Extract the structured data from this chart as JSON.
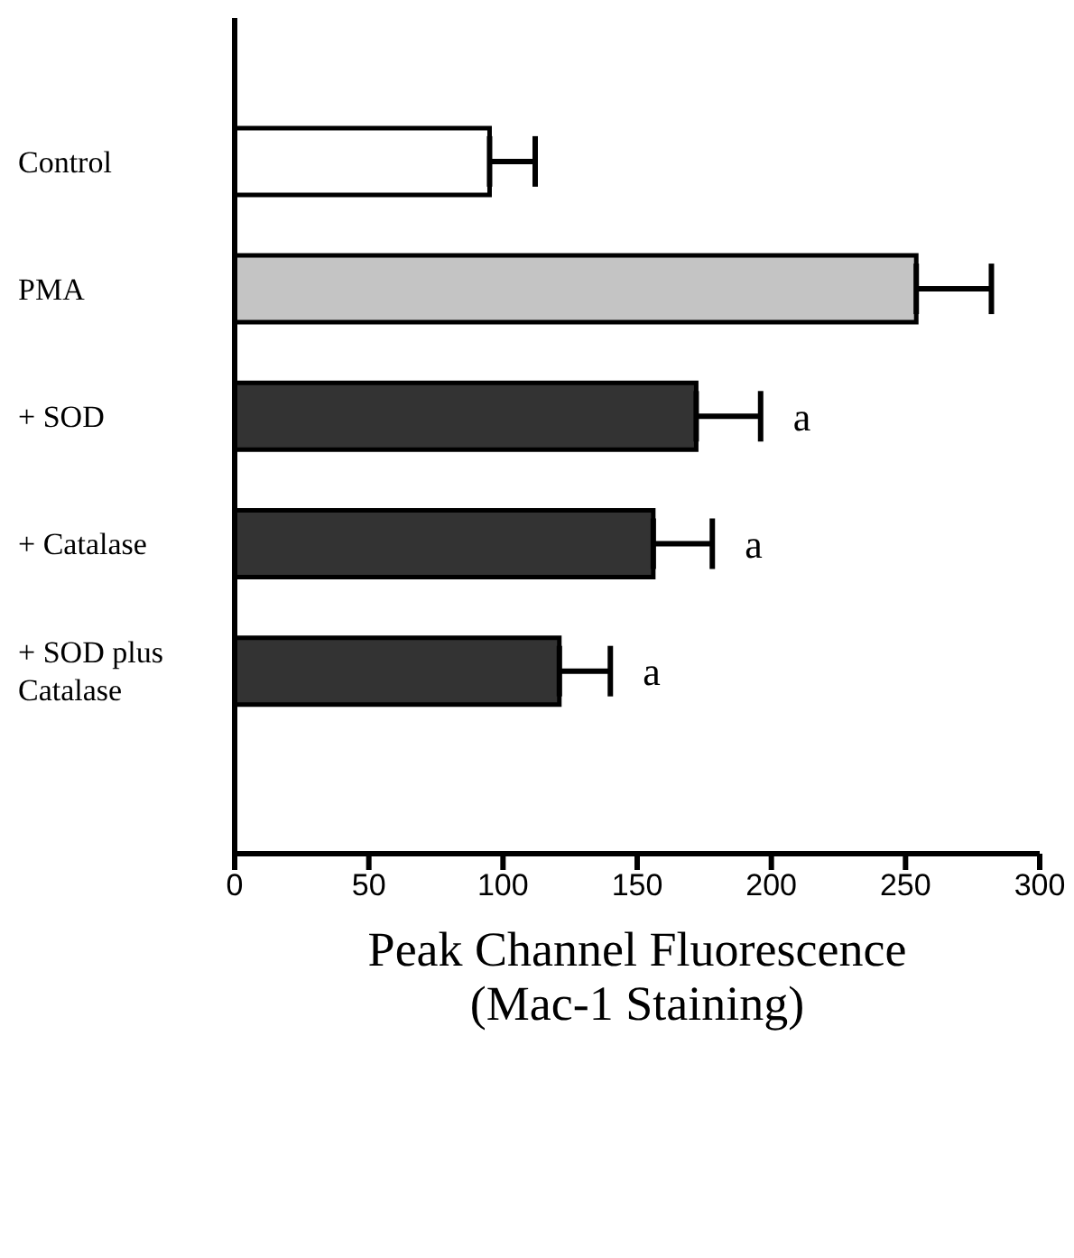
{
  "chart_data": {
    "type": "bar",
    "orientation": "horizontal",
    "xlabel": "Peak Channel Fluorescence\n(Mac-1 Staining)",
    "categories": [
      "Control",
      "PMA",
      "+ SOD",
      "+ Catalase",
      "+ SOD plus Catalase"
    ],
    "values": [
      95,
      254,
      172,
      156,
      121
    ],
    "errors": [
      [
        95,
        112
      ],
      [
        254,
        282
      ],
      [
        172,
        196
      ],
      [
        156,
        178
      ],
      [
        121,
        140
      ]
    ],
    "colors": [
      "#ffffff",
      "#c4c4c4",
      "#333333",
      "#333333",
      "#333333"
    ],
    "xlim": [
      0,
      300
    ],
    "xticks": [
      0,
      50,
      100,
      150,
      200,
      250,
      300
    ],
    "annotations": [
      {
        "text": "a",
        "x": 196,
        "y": "+ SOD"
      },
      {
        "text": "a",
        "x": 178,
        "y": "+ Catalase"
      },
      {
        "text": "a",
        "x": 140,
        "y": "+ SOD plus Catalase"
      }
    ],
    "grid": false,
    "legend": false
  }
}
